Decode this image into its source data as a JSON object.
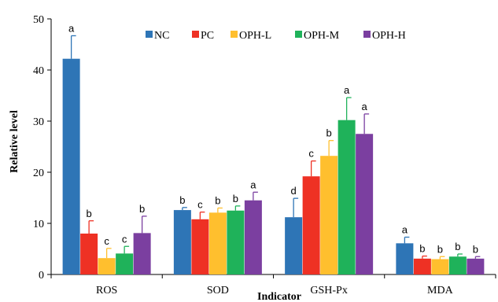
{
  "chart_data": {
    "type": "bar",
    "xlabel": "Indicator",
    "ylabel": "Relative level",
    "ylim": [
      0,
      50
    ],
    "yticks": [
      0,
      10,
      20,
      30,
      40,
      50
    ],
    "categories": [
      "ROS",
      "SOD",
      "GSH-Px",
      "MDA"
    ],
    "legend_position": "top",
    "series": [
      {
        "name": "NC",
        "color": "#2E75B6",
        "values": [
          42.2,
          12.6,
          11.2,
          6.1
        ],
        "errors": [
          4.5,
          0.5,
          3.7,
          1.2
        ],
        "labels": [
          "a",
          "b",
          "d",
          "a"
        ]
      },
      {
        "name": "PC",
        "color": "#EE3124",
        "values": [
          8.0,
          10.8,
          19.2,
          3.1
        ],
        "errors": [
          2.5,
          1.4,
          3.0,
          0.5
        ],
        "labels": [
          "b",
          "c",
          "c",
          "b"
        ]
      },
      {
        "name": "OPH-L",
        "color": "#FFBF2E",
        "values": [
          3.2,
          12.1,
          23.2,
          3.0
        ],
        "errors": [
          1.9,
          0.9,
          3.0,
          0.5
        ],
        "labels": [
          "c",
          "b",
          "b",
          "b"
        ]
      },
      {
        "name": "OPH-M",
        "color": "#1FB25A",
        "values": [
          4.1,
          12.5,
          30.2,
          3.5
        ],
        "errors": [
          1.4,
          0.9,
          4.4,
          0.5
        ],
        "labels": [
          "c",
          "b",
          "a",
          "b"
        ]
      },
      {
        "name": "OPH-H",
        "color": "#7B3FA0",
        "values": [
          8.1,
          14.5,
          27.5,
          3.1
        ],
        "errors": [
          3.3,
          1.6,
          3.9,
          0.4
        ],
        "labels": [
          "b",
          "a",
          "a",
          "b"
        ]
      }
    ]
  }
}
